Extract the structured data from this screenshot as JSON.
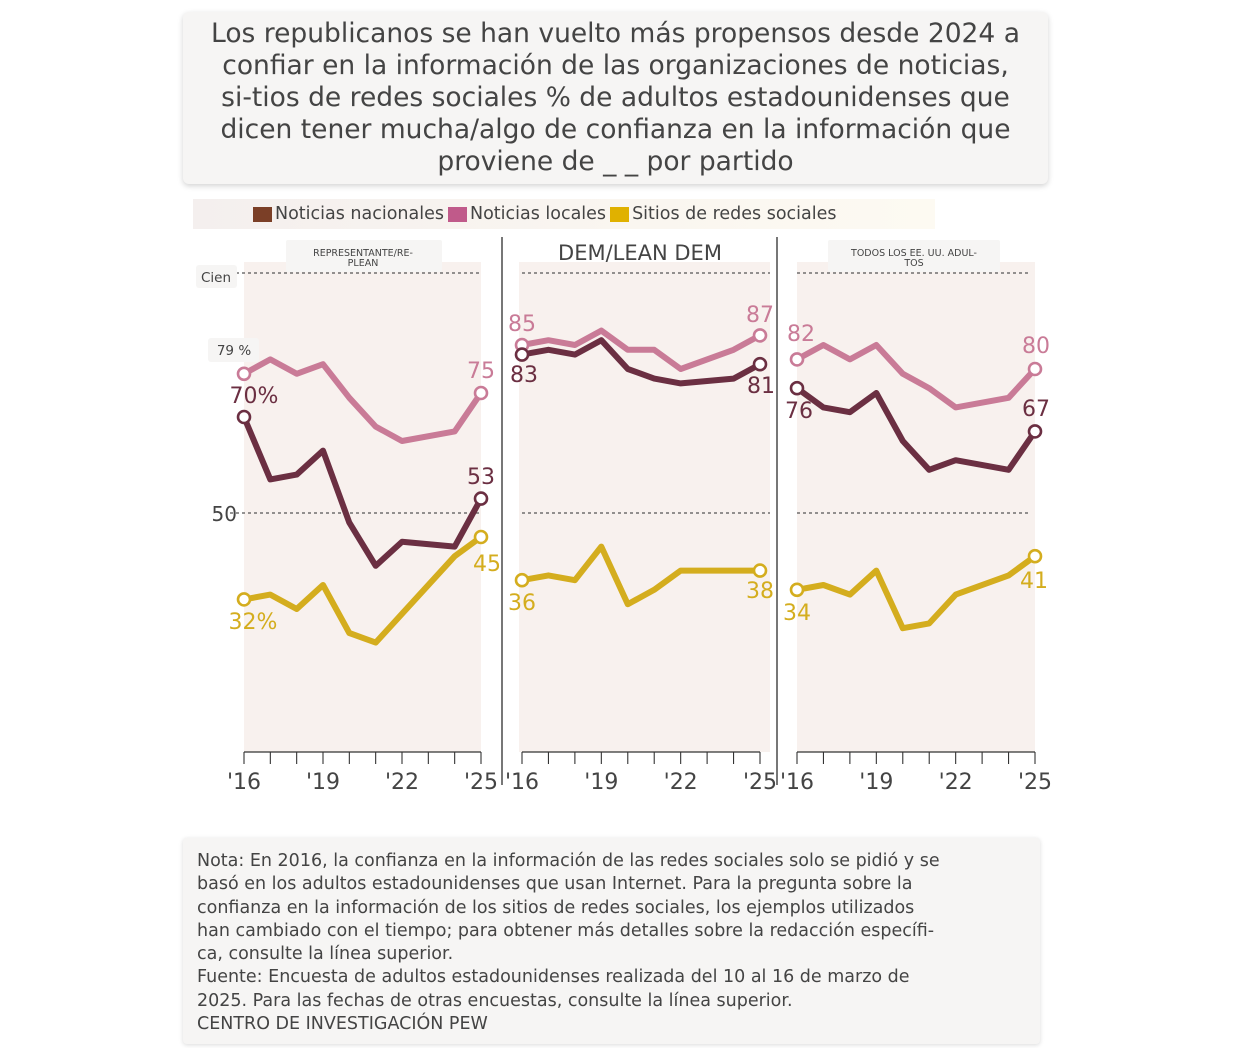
{
  "title": "Los republicanos se han vuelto más propensos desde 2024 a confiar en la información de las organizaciones de noticias, si-tios de redes sociales % de adultos estadounidenses que dicen tener mucha/algo de confianza en la información que proviene de _ _ por partido",
  "legend": [
    {
      "label": "Noticias nacionales",
      "color": "#7b3f27"
    },
    {
      "label": "Noticias locales",
      "color": "#c05a8a"
    },
    {
      "label": "Sitios de redes sociales",
      "color": "#e0b100"
    }
  ],
  "colors": {
    "national": "#6b2f42",
    "local": "#c97b97",
    "social": "#d4ad1e",
    "panel_bg": "#f8f1ee"
  },
  "axis_labels": {
    "hundred": "Cien",
    "fifty": "50",
    "rep_start_local": "79 %"
  },
  "chart_data": {
    "type": "line",
    "title": "Los republicanos se han vuelto más propensos desde 2024 a confiar en la información de las organizaciones de noticias, sitios de redes sociales",
    "ylim": [
      0,
      100
    ],
    "x_tick_labels": [
      "'16",
      "'19",
      "'22",
      "'25"
    ],
    "panels": [
      {
        "name": "REPRESENTANTE/RE-PLEAN",
        "header_lines": [
          "REPRESENTANTE/RE-",
          "PLEAN"
        ],
        "x": [
          2016,
          2017,
          2018,
          2019,
          2020,
          2021,
          2022,
          2024,
          2025
        ],
        "series": [
          {
            "name": "Noticias locales",
            "key": "local",
            "values": [
              79,
              82,
              79,
              81,
              74,
              68,
              65,
              67,
              75
            ]
          },
          {
            "name": "Noticias nacionales",
            "key": "national",
            "values": [
              70,
              57,
              58,
              63,
              48,
              39,
              44,
              43,
              53
            ]
          },
          {
            "name": "Sitios de redes sociales",
            "key": "social",
            "values": [
              32,
              33,
              30,
              35,
              25,
              23,
              29,
              41,
              45
            ]
          }
        ],
        "labels": {
          "local": [
            "79 %",
            "75"
          ],
          "national": [
            "70%",
            "53"
          ],
          "social": [
            "32%",
            "45"
          ]
        }
      },
      {
        "name": "DEM/LEAN DEM",
        "header_lines": [
          "DEM/LEAN DEM"
        ],
        "x": [
          2016,
          2017,
          2018,
          2019,
          2020,
          2021,
          2022,
          2024,
          2025
        ],
        "series": [
          {
            "name": "Noticias locales",
            "key": "local",
            "values": [
              85,
              86,
              85,
              88,
              84,
              84,
              80,
              84,
              87
            ]
          },
          {
            "name": "Noticias nacionales",
            "key": "national",
            "values": [
              83,
              84,
              83,
              86,
              80,
              78,
              77,
              78,
              81
            ]
          },
          {
            "name": "Sitios de redes sociales",
            "key": "social",
            "values": [
              36,
              37,
              36,
              43,
              31,
              34,
              38,
              38,
              38
            ]
          }
        ],
        "labels": {
          "local": [
            "85",
            "87"
          ],
          "national": [
            "83",
            "81"
          ],
          "social": [
            "36",
            "38"
          ]
        }
      },
      {
        "name": "TODOS LOS EE. UU. ADULTOS",
        "header_lines": [
          "TODOS LOS EE. UU. ADUL-",
          "TOS"
        ],
        "x": [
          2016,
          2017,
          2018,
          2019,
          2020,
          2021,
          2022,
          2024,
          2025
        ],
        "series": [
          {
            "name": "Noticias locales",
            "key": "local",
            "values": [
              82,
              85,
              82,
              85,
              79,
              76,
              72,
              74,
              80
            ]
          },
          {
            "name": "Noticias nacionales",
            "key": "national",
            "values": [
              76,
              72,
              71,
              75,
              65,
              59,
              61,
              59,
              67
            ]
          },
          {
            "name": "Sitios de redes sociales",
            "key": "social",
            "values": [
              34,
              35,
              33,
              38,
              26,
              27,
              33,
              37,
              41
            ]
          }
        ],
        "labels": {
          "local": [
            "82",
            "80"
          ],
          "national": [
            "76",
            "67"
          ],
          "social": [
            "34",
            "41"
          ]
        }
      }
    ]
  },
  "note": {
    "lines": [
      "Nota: En 2016, la confianza en la información de las redes sociales solo se pidió y se",
      "basó en los adultos estadounidenses que usan Internet. Para la pregunta sobre la",
      "confianza en la información de los sitios de redes sociales, los ejemplos utilizados",
      "han cambiado con el tiempo; para obtener más detalles sobre la redacción específi-",
      "ca, consulte la línea superior.",
      "Fuente: Encuesta de adultos estadounidenses realizada del 10 al 16 de marzo de",
      "2025. Para las fechas de otras encuestas, consulte la línea superior.",
      "CENTRO DE INVESTIGACIÓN PEW"
    ]
  }
}
